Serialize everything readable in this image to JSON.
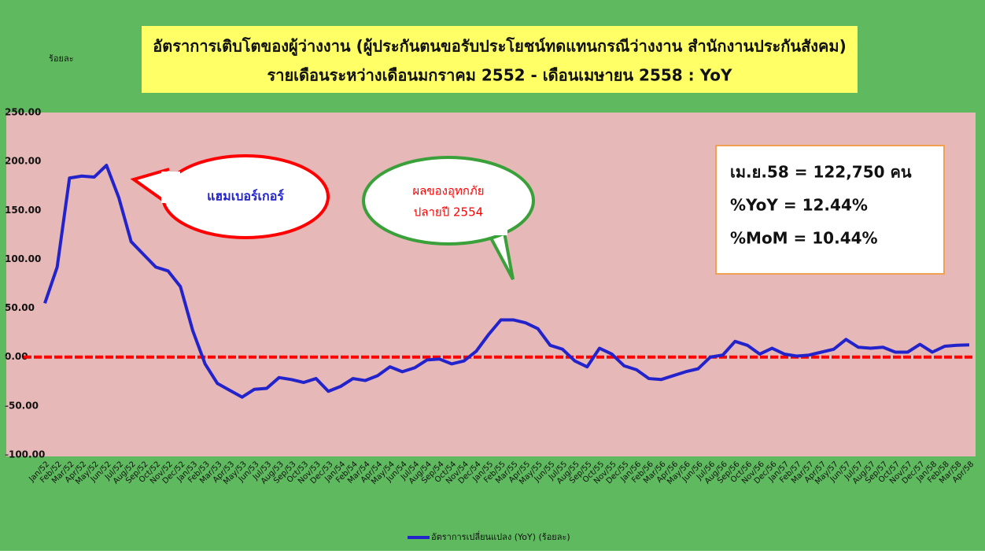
{
  "chart_data": {
    "type": "line",
    "title": [
      "อัตราการเติบโตของผู้ว่างงาน (ผู้ประกันตนขอรับประโยชน์ทดแทนกรณีว่างงาน สำนักงานประกันสังคม)",
      "รายเดือนระหว่างเดือนมกราคม 2552 - เดือนเมษายน 2558 : YoY"
    ],
    "y_axis_label": "ร้อยละ",
    "categories": [
      "Jan/52",
      "Feb/52",
      "Mar/52",
      "Apr/52",
      "May/52",
      "Jun/52",
      "Jul/52",
      "Aug/52",
      "Sep/52",
      "Oct/52",
      "Nov/52",
      "Dec/52",
      "Jan/53",
      "Feb/53",
      "Mar/53",
      "Apr/53",
      "May/53",
      "Jun/53",
      "Jul/53",
      "Aug/53",
      "Sep/53",
      "Oct/53",
      "Nov/53",
      "Dec/53",
      "Jan/54",
      "Feb/54",
      "Mar/54",
      "Apr/54",
      "May/54",
      "Jun/54",
      "Jul/54",
      "Aug/54",
      "Sep/54",
      "Oct/54",
      "Nov/54",
      "Dec/54",
      "Jan/55",
      "Feb/55",
      "Mar/55",
      "Apr/55",
      "May/55",
      "Jun/55",
      "Jul/55",
      "Aug/55",
      "Sep/55",
      "Oct/55",
      "Nov/55",
      "Dec/55",
      "Jan/56",
      "Feb/56",
      "Mar/56",
      "Apr/56",
      "May/56",
      "Jun/56",
      "Jul/56",
      "Aug/56",
      "Sep/56",
      "Oct/56",
      "Nov/56",
      "Dec/56",
      "Jan/57",
      "Feb/57",
      "Mar/57",
      "Apr/57",
      "May/57",
      "Jun/57",
      "Jul/57",
      "Aug/57",
      "Sep/57",
      "Oct/57",
      "Nov/57",
      "Dec/57",
      "Jan/58",
      "Feb/58",
      "Mar/58",
      "Apr/58"
    ],
    "series": [
      {
        "name": "อัตราการเปลี่ยนแปลง (YoY) (ร้อยละ)",
        "color": "#2323cc",
        "values": [
          55,
          92,
          183,
          185,
          184,
          196,
          163,
          118,
          105,
          92,
          88,
          72,
          27,
          -7,
          -27,
          -34,
          -41,
          -33,
          -32,
          -21,
          -23,
          -26,
          -22,
          -35,
          -30,
          -22,
          -24,
          -19,
          -10,
          -15,
          -11,
          -3,
          -2,
          -7,
          -4,
          6,
          23,
          38,
          38,
          35,
          29,
          12,
          8,
          -4,
          -10,
          9,
          3,
          -9,
          -13,
          -22,
          -23,
          -19,
          -15,
          -12,
          0,
          2,
          16,
          12,
          3,
          9,
          3,
          1,
          2,
          5,
          8,
          18,
          10,
          9,
          10,
          5,
          5,
          13,
          5,
          11,
          12,
          12.44
        ]
      }
    ],
    "ylim": [
      -100,
      250
    ],
    "yticks": [
      {
        "value": -100,
        "label": "-100.00"
      },
      {
        "value": -50,
        "label": "-50.00"
      },
      {
        "value": 0,
        "label": "0.00"
      },
      {
        "value": 50,
        "label": "50.00"
      },
      {
        "value": 100,
        "label": "100.00"
      },
      {
        "value": 150,
        "label": "150.00"
      },
      {
        "value": 200,
        "label": "200.00"
      },
      {
        "value": 250,
        "label": "250.00"
      }
    ],
    "reference_line": {
      "value": 0,
      "color": "#ff0000"
    },
    "annotations": {
      "hamburger": "แฮมเบอร์เกอร์",
      "flood": [
        "ผลของอุทกภัย",
        "ปลายปี 2554"
      ],
      "box": [
        "เม.ย.58 = 122,750 คน",
        "%YoY = 12.44%",
        "%MoM = 10.44%"
      ]
    },
    "legend": "bottom"
  }
}
